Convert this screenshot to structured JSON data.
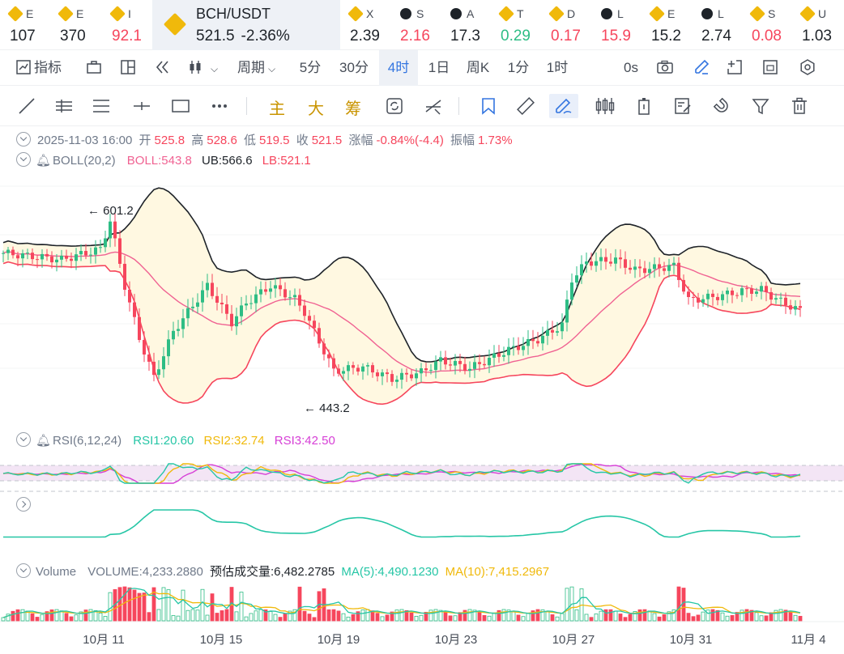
{
  "tickers": [
    {
      "sym": "E",
      "price": "107",
      "icon": "binance-diamond-icon",
      "dir": "neu",
      "x": 0,
      "w": 62
    },
    {
      "sym": "E",
      "price": "370",
      "icon": "binance-diamond-icon",
      "dir": "neu",
      "x": 62,
      "w": 64
    },
    {
      "sym": "I",
      "price": "92.1",
      "icon": "binance-diamond-icon",
      "dir": "dn",
      "x": 126,
      "w": 62
    },
    {
      "sym": "BCH/USDT",
      "price": "521.5",
      "change": "-2.36%",
      "icon": "binance-diamond-icon",
      "dir": "neu",
      "x": 188,
      "w": 232,
      "active": true
    },
    {
      "sym": "X",
      "price": "2.39",
      "icon": "binance-diamond-icon",
      "dir": "neu",
      "x": 420,
      "w": 62
    },
    {
      "sym": "S",
      "price": "2.16",
      "icon": "chain-circle-icon",
      "dir": "dn",
      "x": 482,
      "w": 62
    },
    {
      "sym": "A",
      "price": "17.3",
      "icon": "chain-circle-icon",
      "dir": "neu",
      "x": 544,
      "w": 62
    },
    {
      "sym": "T",
      "price": "0.29",
      "icon": "binance-diamond-icon",
      "dir": "up",
      "x": 606,
      "w": 62
    },
    {
      "sym": "D",
      "price": "0.17",
      "icon": "binance-diamond-icon",
      "dir": "dn",
      "x": 668,
      "w": 62
    },
    {
      "sym": "L",
      "price": "15.9",
      "icon": "chain-circle-icon",
      "dir": "dn",
      "x": 730,
      "w": 62
    },
    {
      "sym": "E",
      "price": "15.2",
      "icon": "binance-diamond-icon",
      "dir": "neu",
      "x": 792,
      "w": 62
    },
    {
      "sym": "L",
      "price": "2.74",
      "icon": "chain-circle-icon",
      "dir": "neu",
      "x": 854,
      "w": 62
    },
    {
      "sym": "S",
      "price": "0.08",
      "icon": "binance-diamond-icon",
      "dir": "dn",
      "x": 916,
      "w": 62
    },
    {
      "sym": "U",
      "price": "1.03",
      "icon": "binance-diamond-icon",
      "dir": "neu",
      "x": 978,
      "w": 64
    }
  ],
  "toolbar": {
    "indicator": "指标",
    "period": "周期",
    "intervals": [
      "5分",
      "30分",
      "4时",
      "1日",
      "周K",
      "1分",
      "1时"
    ],
    "selected_interval": "4时",
    "countdown": "0s"
  },
  "drawing_tools": {
    "main": "主",
    "big": "大",
    "chip": "筹"
  },
  "ohlc": {
    "date": "2025-11-03 16:00",
    "open_label": "开",
    "open": "525.8",
    "high_label": "高",
    "high": "528.6",
    "low_label": "低",
    "low": "519.5",
    "close_label": "收",
    "close": "521.5",
    "change_label": "涨幅",
    "change": "-0.84%(-4.4)",
    "amp_label": "振幅",
    "amp": "1.73%"
  },
  "boll": {
    "name": "BOLL(20,2)",
    "mid": "BOLL:543.8",
    "ub": "UB:566.6",
    "lb": "LB:521.1"
  },
  "rsi": {
    "name": "RSI(6,12,24)",
    "rsi1": "RSI1:20.60",
    "rsi2": "RSI2:32.74",
    "rsi3": "RSI3:42.50"
  },
  "volume": {
    "name": "Volume",
    "vol": "VOLUME:4,233.2880",
    "est": "预估成交量:6,482.2785",
    "ma5": "MA(5):4,490.1230",
    "ma10": "MA(10):7,415.2967"
  },
  "annotations": {
    "high_mark": "601.2",
    "low_mark": "443.2"
  },
  "chart_data": {
    "type": "candlestick",
    "x_ticks": [
      "10月 11",
      "10月 15",
      "10月 19",
      "10月 23",
      "10月 27",
      "10月 31",
      "11月 4"
    ],
    "colors": {
      "up": "#2ebd85",
      "down": "#f6465d",
      "boll_mid": "#f06292",
      "boll_band": "#1e2329",
      "fill": "#fff8e1",
      "rsi1": "#26c6a6",
      "rsi2": "#f0b90b",
      "rsi3": "#d63fd6",
      "ma5": "#26c6a6",
      "ma10": "#f0b90b"
    }
  }
}
